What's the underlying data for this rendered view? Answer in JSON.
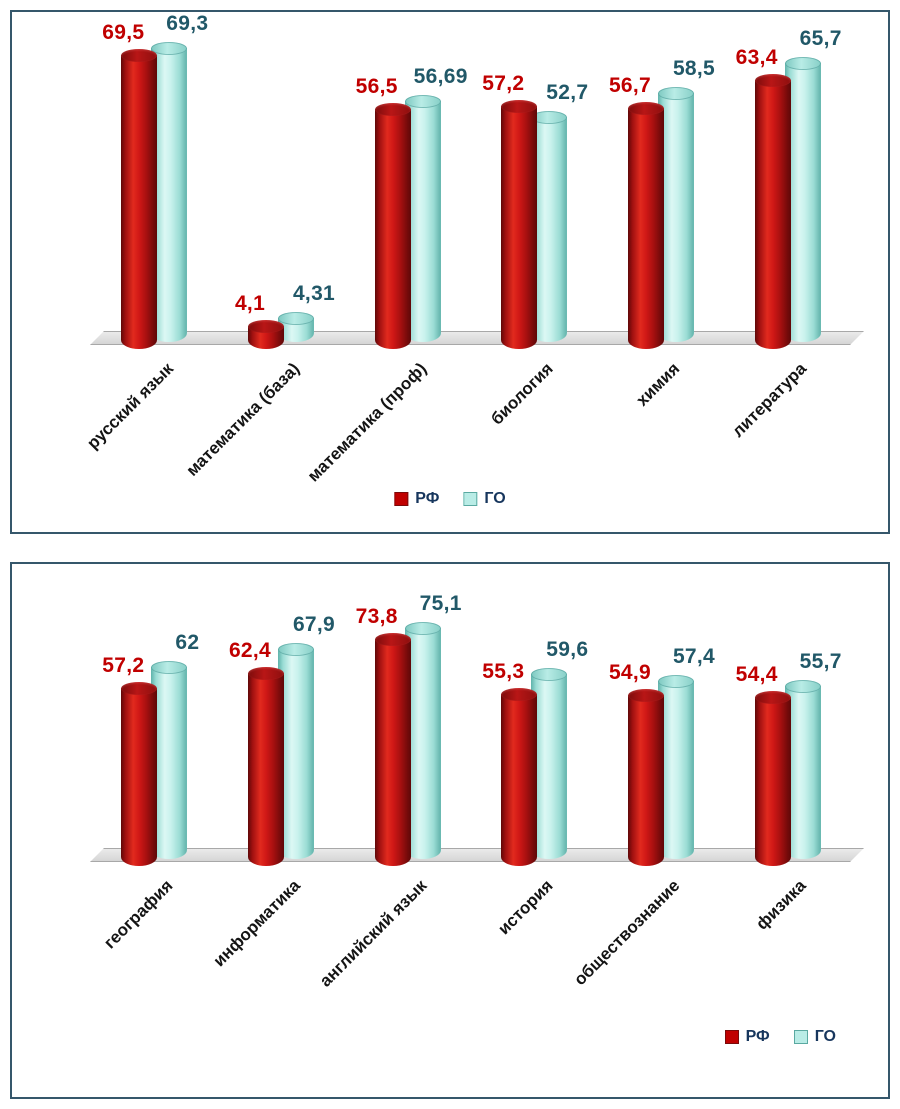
{
  "colors": {
    "rf_bar": "#c00000",
    "go_bar": "#b9ece6",
    "rf_label": "#c00000",
    "go_label": "#215868",
    "box_border": "#35576b"
  },
  "chart_data": [
    {
      "type": "bar",
      "title": "",
      "xlabel": "",
      "ylabel": "",
      "ylim": [
        0,
        80
      ],
      "grid": false,
      "legend_position": "bottom-center",
      "categories": [
        "русский язык",
        "математика (база)",
        "математика (проф)",
        "биология",
        "химия",
        "литература"
      ],
      "series": [
        {
          "name": "РФ",
          "color": "#c00000",
          "label_color": "#c00000",
          "values": [
            69.5,
            4.1,
            56.5,
            57.2,
            56.7,
            63.4
          ],
          "labels": [
            "69,5",
            "4,1",
            "56,5",
            "57,2",
            "56,7",
            "63,4"
          ]
        },
        {
          "name": "ГО",
          "color": "#b9ece6",
          "label_color": "#215868",
          "values": [
            69.3,
            4.31,
            56.69,
            52.7,
            58.5,
            65.7
          ],
          "labels": [
            "69,3",
            "4,31",
            "56,69",
            "52,7",
            "58,5",
            "65,7"
          ]
        }
      ]
    },
    {
      "type": "bar",
      "title": "",
      "xlabel": "",
      "ylabel": "",
      "ylim": [
        0,
        80
      ],
      "grid": false,
      "legend_position": "bottom-right",
      "categories": [
        "география",
        "информатика",
        "английский язык",
        "история",
        "обществознание",
        "физика"
      ],
      "series": [
        {
          "name": "РФ",
          "color": "#c00000",
          "label_color": "#c00000",
          "values": [
            57.2,
            62.4,
            73.8,
            55.3,
            54.9,
            54.4
          ],
          "labels": [
            "57,2",
            "62,4",
            "73,8",
            "55,3",
            "54,9",
            "54,4"
          ]
        },
        {
          "name": "ГО",
          "color": "#b9ece6",
          "label_color": "#215868",
          "values": [
            62,
            67.9,
            75.1,
            59.6,
            57.4,
            55.7
          ],
          "labels": [
            "62",
            "67,9",
            "75,1",
            "59,6",
            "57,4",
            "55,7"
          ]
        }
      ]
    }
  ]
}
